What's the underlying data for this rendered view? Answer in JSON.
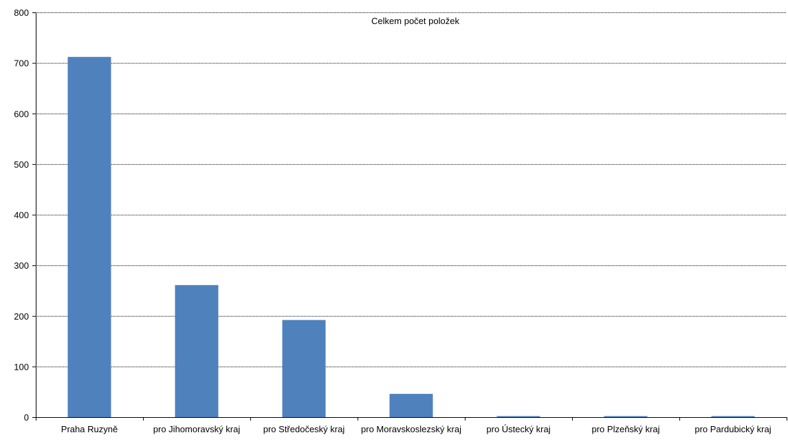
{
  "chart_data": {
    "type": "bar",
    "title": "Celkem počet položek",
    "xlabel": "",
    "ylabel": "",
    "categories": [
      "Praha Ruzyně",
      "pro Jihomoravský kraj",
      "pro Středočeský kraj",
      "pro Moravskoslezský kraj",
      "pro Ústecký kraj",
      "pro Plzeňský kraj",
      "pro Pardubický kraj"
    ],
    "values": [
      712,
      261,
      192,
      46,
      2,
      2,
      2
    ],
    "ylim": [
      0,
      800
    ],
    "yticks": [
      0,
      100,
      200,
      300,
      400,
      500,
      600,
      700,
      800
    ],
    "grid": true,
    "legend": "none",
    "colors": {
      "bar": "#4f81bd",
      "grid": "#000000"
    }
  }
}
